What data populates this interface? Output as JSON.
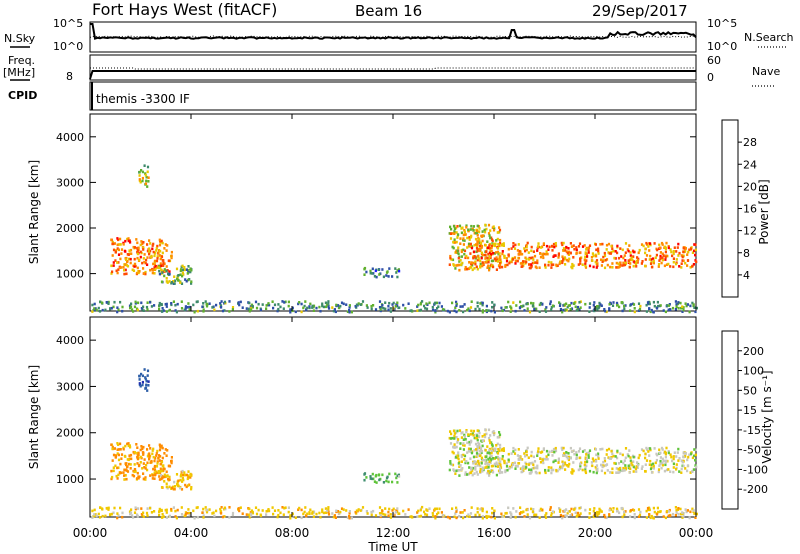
{
  "header": {
    "station": "Fort Hays West (fitACF)",
    "beam": "Beam 16",
    "date": "29/Sep/2017"
  },
  "summary": {
    "nsky_label": "N.Sky",
    "nsearch_label": "N.Search",
    "freq_label": "Freq.",
    "freq_unit": "[MHz]",
    "nave_label": "Nave",
    "cpid_label": "CPID",
    "nsky_ticks": [
      "10^5",
      "10^0"
    ],
    "nsearch_ticks": [
      "10^5",
      "10^0"
    ],
    "freq_ticks": [
      "8"
    ],
    "nave_ticks": [
      "60",
      "0"
    ],
    "cpid_text": "themis -3300 IF"
  },
  "power_panel": {
    "ylabel": "Slant Range [km]",
    "yticks": [
      "1000",
      "2000",
      "3000",
      "4000"
    ],
    "cbar_label": "Power [dB]",
    "cbar_ticks": [
      "4",
      "8",
      "12",
      "16",
      "20",
      "24",
      "28"
    ],
    "cbar_colors": [
      "#1a1aff",
      "#2d4fa6",
      "#3d8a6a",
      "#60b02e",
      "#e8c800",
      "#ff8c00",
      "#ff4a00",
      "#ff0000"
    ]
  },
  "velocity_panel": {
    "ylabel": "Slant Range [km]",
    "yticks": [
      "1000",
      "2000",
      "3000",
      "4000"
    ],
    "cbar_label": "Velocity [m s⁻¹]",
    "cbar_ticks": [
      "200",
      "100",
      "50",
      "15",
      "-15",
      "-50",
      "-100",
      "-200"
    ],
    "cbar_colors": [
      "#1e2fb0",
      "#2e5fa8",
      "#3f8e6e",
      "#5fc43a",
      "#c8c8c0",
      "#f0c800",
      "#ff8c00",
      "#ff4a00",
      "#ff0000"
    ]
  },
  "xaxis": {
    "label": "Time UT",
    "ticks": [
      "00:00",
      "04:00",
      "08:00",
      "12:00",
      "16:00",
      "20:00",
      "00:00"
    ]
  },
  "chart_data": {
    "type": "heatmap",
    "title": "Fort Hays West (fitACF)",
    "x_range": [
      "00:00",
      "24:00"
    ],
    "y_range_km": [
      180,
      4500
    ],
    "power_range_db": [
      0,
      30
    ],
    "velocity_range": [
      -250,
      250
    ],
    "echo_regions": [
      {
        "t_start": 0.8,
        "t_end": 3.2,
        "r_low": 1000,
        "r_high": 1800,
        "power_db": 22,
        "velocity": -60
      },
      {
        "t_start": 2.6,
        "t_end": 4.0,
        "r_low": 800,
        "r_high": 1200,
        "power_db": 12,
        "velocity": -40
      },
      {
        "t_start": 1.9,
        "t_end": 2.3,
        "r_low": 2900,
        "r_high": 3400,
        "power_db": 16,
        "velocity": 180
      },
      {
        "t_start": 10.8,
        "t_end": 12.2,
        "r_low": 950,
        "r_high": 1150,
        "power_db": 8,
        "velocity": 40
      },
      {
        "t_start": 14.2,
        "t_end": 16.2,
        "r_low": 1100,
        "r_high": 2100,
        "power_db": 18,
        "velocity": 0
      },
      {
        "t_start": 15.0,
        "t_end": 24.0,
        "r_low": 1150,
        "r_high": 1700,
        "power_db": 22,
        "velocity": -5
      },
      {
        "t_start": 0.0,
        "t_end": 24.0,
        "r_low": 180,
        "r_high": 420,
        "power_db": 10,
        "velocity": -30
      }
    ]
  }
}
